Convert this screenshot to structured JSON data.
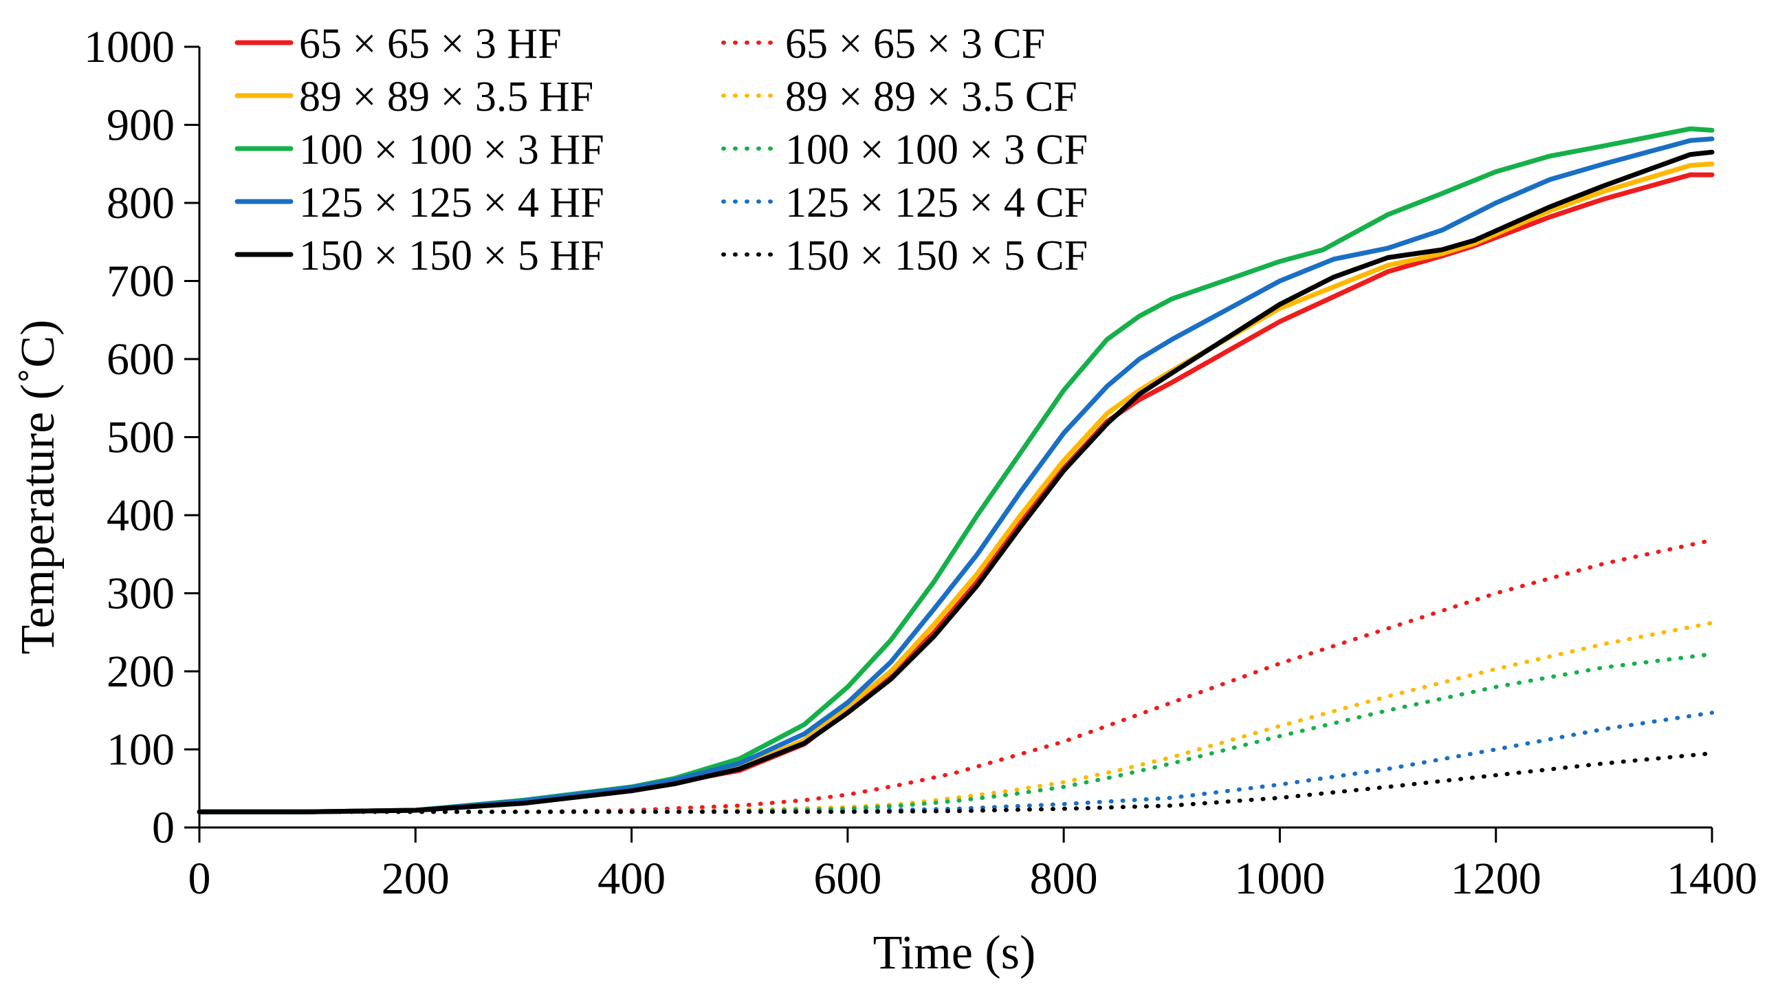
{
  "chart_data": {
    "type": "line",
    "title": "",
    "xlabel": "Time (s)",
    "ylabel": "Temperature (˚C)",
    "xlim": [
      0,
      1400
    ],
    "ylim": [
      0,
      1000
    ],
    "xticks": [
      0,
      200,
      400,
      600,
      800,
      1000,
      1200,
      1400
    ],
    "yticks": [
      0,
      100,
      200,
      300,
      400,
      500,
      600,
      700,
      800,
      900,
      1000
    ],
    "grid": false,
    "legend_position": "top-left",
    "series": [
      {
        "name": "65 × 65 × 3 HF",
        "color": "#ee1c1c",
        "style": "solid",
        "points": [
          [
            0,
            20
          ],
          [
            100,
            20
          ],
          [
            200,
            22
          ],
          [
            300,
            32
          ],
          [
            400,
            48
          ],
          [
            440,
            58
          ],
          [
            500,
            73
          ],
          [
            560,
            107
          ],
          [
            600,
            150
          ],
          [
            640,
            195
          ],
          [
            680,
            250
          ],
          [
            720,
            315
          ],
          [
            760,
            390
          ],
          [
            800,
            460
          ],
          [
            840,
            520
          ],
          [
            870,
            548
          ],
          [
            900,
            570
          ],
          [
            1000,
            648
          ],
          [
            1100,
            712
          ],
          [
            1150,
            732
          ],
          [
            1180,
            745
          ],
          [
            1250,
            782
          ],
          [
            1300,
            805
          ],
          [
            1380,
            836
          ],
          [
            1400,
            836
          ]
        ]
      },
      {
        "name": "89 × 89 × 3.5 HF",
        "color": "#ffb800",
        "style": "solid",
        "points": [
          [
            0,
            20
          ],
          [
            100,
            20
          ],
          [
            200,
            22
          ],
          [
            300,
            33
          ],
          [
            400,
            50
          ],
          [
            440,
            60
          ],
          [
            500,
            77
          ],
          [
            560,
            112
          ],
          [
            600,
            155
          ],
          [
            640,
            200
          ],
          [
            680,
            260
          ],
          [
            720,
            325
          ],
          [
            760,
            400
          ],
          [
            800,
            470
          ],
          [
            840,
            530
          ],
          [
            870,
            560
          ],
          [
            900,
            585
          ],
          [
            1000,
            665
          ],
          [
            1100,
            720
          ],
          [
            1150,
            735
          ],
          [
            1180,
            748
          ],
          [
            1250,
            790
          ],
          [
            1300,
            815
          ],
          [
            1380,
            848
          ],
          [
            1400,
            850
          ]
        ]
      },
      {
        "name": "100 × 100 × 3 HF",
        "color": "#16b04a",
        "style": "solid",
        "points": [
          [
            0,
            20
          ],
          [
            100,
            20
          ],
          [
            200,
            22
          ],
          [
            300,
            35
          ],
          [
            400,
            52
          ],
          [
            440,
            63
          ],
          [
            500,
            88
          ],
          [
            560,
            132
          ],
          [
            600,
            180
          ],
          [
            640,
            240
          ],
          [
            680,
            315
          ],
          [
            720,
            400
          ],
          [
            760,
            480
          ],
          [
            800,
            560
          ],
          [
            840,
            625
          ],
          [
            870,
            655
          ],
          [
            900,
            677
          ],
          [
            1000,
            725
          ],
          [
            1040,
            740
          ],
          [
            1060,
            755
          ],
          [
            1100,
            785
          ],
          [
            1150,
            812
          ],
          [
            1200,
            840
          ],
          [
            1250,
            860
          ],
          [
            1300,
            873
          ],
          [
            1380,
            895
          ],
          [
            1400,
            893
          ]
        ]
      },
      {
        "name": "125 × 125 × 4 HF",
        "color": "#1a6fc4",
        "style": "solid",
        "points": [
          [
            0,
            20
          ],
          [
            100,
            20
          ],
          [
            200,
            22
          ],
          [
            300,
            34
          ],
          [
            400,
            51
          ],
          [
            440,
            61
          ],
          [
            500,
            82
          ],
          [
            560,
            120
          ],
          [
            600,
            160
          ],
          [
            640,
            212
          ],
          [
            680,
            280
          ],
          [
            720,
            350
          ],
          [
            760,
            430
          ],
          [
            800,
            505
          ],
          [
            840,
            565
          ],
          [
            870,
            600
          ],
          [
            900,
            625
          ],
          [
            1000,
            700
          ],
          [
            1050,
            728
          ],
          [
            1100,
            742
          ],
          [
            1150,
            765
          ],
          [
            1200,
            800
          ],
          [
            1250,
            830
          ],
          [
            1300,
            850
          ],
          [
            1380,
            880
          ],
          [
            1400,
            882
          ]
        ]
      },
      {
        "name": "150 × 150 × 5 HF",
        "color": "#000000",
        "style": "solid",
        "points": [
          [
            0,
            20
          ],
          [
            100,
            20
          ],
          [
            200,
            22
          ],
          [
            300,
            31
          ],
          [
            400,
            47
          ],
          [
            440,
            56
          ],
          [
            500,
            75
          ],
          [
            560,
            108
          ],
          [
            600,
            147
          ],
          [
            640,
            190
          ],
          [
            680,
            245
          ],
          [
            720,
            310
          ],
          [
            760,
            385
          ],
          [
            800,
            457
          ],
          [
            840,
            517
          ],
          [
            870,
            555
          ],
          [
            900,
            582
          ],
          [
            1000,
            670
          ],
          [
            1050,
            705
          ],
          [
            1100,
            730
          ],
          [
            1150,
            740
          ],
          [
            1180,
            752
          ],
          [
            1250,
            795
          ],
          [
            1300,
            822
          ],
          [
            1380,
            862
          ],
          [
            1400,
            865
          ]
        ]
      },
      {
        "name": "65 × 65 × 3 CF",
        "color": "#ee1c1c",
        "style": "dotted",
        "points": [
          [
            0,
            20
          ],
          [
            200,
            20
          ],
          [
            300,
            20
          ],
          [
            400,
            22
          ],
          [
            500,
            28
          ],
          [
            560,
            35
          ],
          [
            600,
            42
          ],
          [
            650,
            55
          ],
          [
            700,
            70
          ],
          [
            750,
            90
          ],
          [
            800,
            110
          ],
          [
            850,
            135
          ],
          [
            900,
            160
          ],
          [
            1000,
            210
          ],
          [
            1100,
            255
          ],
          [
            1200,
            300
          ],
          [
            1300,
            338
          ],
          [
            1400,
            368
          ]
        ]
      },
      {
        "name": "89 × 89 × 3.5 CF",
        "color": "#ffb800",
        "style": "dotted",
        "points": [
          [
            0,
            20
          ],
          [
            300,
            20
          ],
          [
            400,
            20
          ],
          [
            500,
            22
          ],
          [
            600,
            26
          ],
          [
            650,
            30
          ],
          [
            700,
            38
          ],
          [
            750,
            47
          ],
          [
            800,
            58
          ],
          [
            850,
            73
          ],
          [
            900,
            90
          ],
          [
            1000,
            130
          ],
          [
            1100,
            168
          ],
          [
            1200,
            203
          ],
          [
            1300,
            235
          ],
          [
            1400,
            262
          ]
        ]
      },
      {
        "name": "100 × 100 × 3 CF",
        "color": "#16b04a",
        "style": "dotted",
        "points": [
          [
            0,
            20
          ],
          [
            300,
            20
          ],
          [
            400,
            20
          ],
          [
            500,
            21
          ],
          [
            600,
            24
          ],
          [
            650,
            28
          ],
          [
            700,
            34
          ],
          [
            750,
            42
          ],
          [
            800,
            52
          ],
          [
            850,
            66
          ],
          [
            900,
            82
          ],
          [
            1000,
            117
          ],
          [
            1100,
            150
          ],
          [
            1200,
            180
          ],
          [
            1300,
            205
          ],
          [
            1400,
            222
          ]
        ]
      },
      {
        "name": "125 × 125 × 4 CF",
        "color": "#1a6fc4",
        "style": "dotted",
        "points": [
          [
            0,
            20
          ],
          [
            400,
            20
          ],
          [
            600,
            21
          ],
          [
            700,
            24
          ],
          [
            800,
            30
          ],
          [
            900,
            38
          ],
          [
            1000,
            55
          ],
          [
            1100,
            75
          ],
          [
            1200,
            100
          ],
          [
            1300,
            126
          ],
          [
            1400,
            147
          ]
        ]
      },
      {
        "name": "150 × 150 × 5 CF",
        "color": "#000000",
        "style": "dotted",
        "points": [
          [
            0,
            20
          ],
          [
            400,
            20
          ],
          [
            600,
            20
          ],
          [
            700,
            21
          ],
          [
            800,
            24
          ],
          [
            900,
            28
          ],
          [
            1000,
            38
          ],
          [
            1100,
            52
          ],
          [
            1200,
            67
          ],
          [
            1300,
            82
          ],
          [
            1400,
            95
          ]
        ]
      }
    ]
  }
}
